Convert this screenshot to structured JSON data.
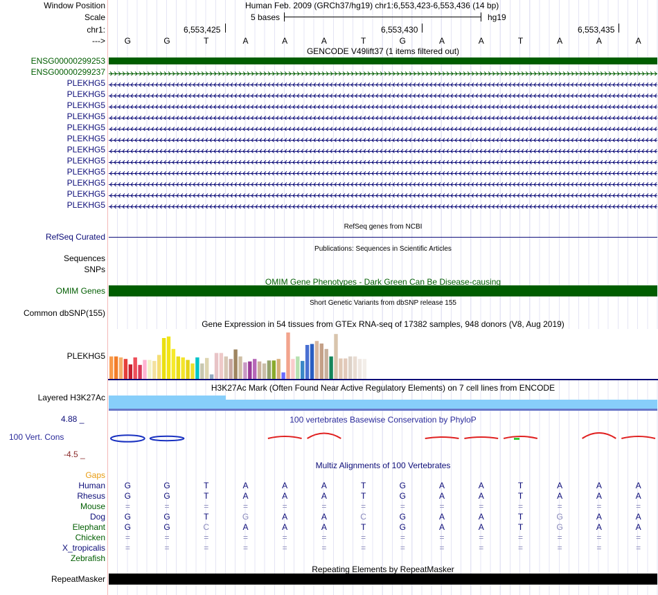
{
  "header": {
    "window_position_label": "Window Position",
    "window_position_value": "Human Feb. 2009 (GRCh37/hg19)   chr1:6,553,423-6,553,436 (14 bp)",
    "scale_label": "Scale",
    "scale_value": "5 bases",
    "scale_assembly": "hg19",
    "chrom_label": "chr1:",
    "strand_label": "--->",
    "positions": [
      "6,553,425",
      "6,553,430",
      "6,553,435"
    ],
    "bases": [
      "G",
      "G",
      "T",
      "A",
      "A",
      "A",
      "T",
      "G",
      "A",
      "A",
      "T",
      "A",
      "A",
      "A"
    ]
  },
  "gencode": {
    "title": "GENCODE V49lift37 (1 items filtered out)",
    "items": [
      {
        "label": "ENSG00000299253",
        "style": "solid"
      },
      {
        "label": "ENSG00000299237",
        "style": "forward"
      },
      {
        "label": "PLEKHG5",
        "style": "reverse"
      },
      {
        "label": "PLEKHG5",
        "style": "reverse"
      },
      {
        "label": "PLEKHG5",
        "style": "reverse"
      },
      {
        "label": "PLEKHG5",
        "style": "reverse"
      },
      {
        "label": "PLEKHG5",
        "style": "reverse"
      },
      {
        "label": "PLEKHG5",
        "style": "reverse"
      },
      {
        "label": "PLEKHG5",
        "style": "reverse"
      },
      {
        "label": "PLEKHG5",
        "style": "reverse"
      },
      {
        "label": "PLEKHG5",
        "style": "reverse"
      },
      {
        "label": "PLEKHG5",
        "style": "reverse"
      },
      {
        "label": "PLEKHG5",
        "style": "reverse"
      },
      {
        "label": "PLEKHG5",
        "style": "reverse"
      }
    ]
  },
  "refseq": {
    "title": "RefSeq genes from NCBI",
    "label": "RefSeq Curated"
  },
  "publications": {
    "title": "Publications: Sequences in Scientific Articles",
    "label": "Sequences"
  },
  "snps": {
    "label": "SNPs"
  },
  "omim": {
    "title": "OMIM Gene Phenotypes - Dark Green Can Be Disease-causing",
    "label": "OMIM Genes"
  },
  "dbsnp": {
    "title": "Short Genetic Variants from dbSNP release 155",
    "label": "Common dbSNP(155)"
  },
  "gtex": {
    "title": "Gene Expression in 54 tissues from GTEx RNA-seq of 17382 samples, 948 donors (V8, Aug 2019)",
    "label": "PLEKHG5",
    "values": [
      0.45,
      0.45,
      0.43,
      0.4,
      0.29,
      0.43,
      0.28,
      0.38,
      0.38,
      0.36,
      0.48,
      0.82,
      0.85,
      0.6,
      0.45,
      0.43,
      0.38,
      0.31,
      0.43,
      0.31,
      0.42,
      0.09,
      0.52,
      0.52,
      0.45,
      0.4,
      0.59,
      0.45,
      0.33,
      0.35,
      0.4,
      0.35,
      0.31,
      0.37,
      0.37,
      0.4,
      0.13,
      0.93,
      0.4,
      0.45,
      0.36,
      0.68,
      0.7,
      0.76,
      0.71,
      0.6,
      0.45,
      0.9,
      0.41,
      0.41,
      0.45,
      0.45,
      0.4,
      0.4
    ],
    "colors": [
      "#f99b4a",
      "#f27d28",
      "#f5b06b",
      "#e53f3a",
      "#c7202f",
      "#ee4f5a",
      "#d83b59",
      "#ffb3d1",
      "#f2f2c9",
      "#f3e19e",
      "#f5de73",
      "#eadf10",
      "#f2e416",
      "#f6ea2b",
      "#e9dd16",
      "#f4e42a",
      "#e5d317",
      "#eedf2d",
      "#00c4c9",
      "#c7c7b0",
      "#ddd5b0",
      "#95a9c0",
      "#e8c3c6",
      "#eec9c8",
      "#d7c7b5",
      "#c8a8a1",
      "#9e8560",
      "#cfbfa5",
      "#c898c4",
      "#9a3c99",
      "#b667b8",
      "#ccb29d",
      "#c9bda8",
      "#94a36e",
      "#8aaa2d",
      "#d7b07a",
      "#6b6bff",
      "#f2a48d",
      "#f9cccc",
      "#b6e1b0",
      "#3a87c7",
      "#4a70d2",
      "#2a5ec2",
      "#d8b79f",
      "#c4a087",
      "#c8b09c",
      "#14855a",
      "#d9c5ad",
      "#e0c8b5",
      "#e2c9ba",
      "#ddd2c8",
      "#e9dcd2",
      "#efe8e2",
      "#f3eee9"
    ]
  },
  "h3k27": {
    "title": "H3K27Ac Mark (Often Found Near Active Regulatory Elements) on 7 cell lines from ENCODE",
    "label": "Layered H3K27Ac"
  },
  "phylop": {
    "title": "100 vertebrates Basewise Conservation by PhyloP",
    "label": "100 Vert. Cons",
    "max": "4.88 _",
    "min": "-4.5 _",
    "scores": [
      -1.2,
      -0.8,
      0,
      0,
      0.6,
      1.5,
      0,
      0,
      0.4,
      0.4,
      0.6,
      0,
      1.6,
      0.6
    ]
  },
  "multiz": {
    "title": "Multiz Alignments of 100 Vertebrates",
    "gaps_label": "Gaps",
    "species": [
      {
        "name": "Human",
        "color": "#0c0c78",
        "bases": [
          "G",
          "G",
          "T",
          "A",
          "A",
          "A",
          "T",
          "G",
          "A",
          "A",
          "T",
          "A",
          "A",
          "A"
        ]
      },
      {
        "name": "Rhesus",
        "color": "#0c0c78",
        "bases": [
          "G",
          "G",
          "T",
          "A",
          "A",
          "A",
          "T",
          "G",
          "A",
          "A",
          "T",
          "A",
          "A",
          "A"
        ]
      },
      {
        "name": "Mouse",
        "color": "#005d00",
        "bases": [
          "=",
          "=",
          "=",
          "=",
          "=",
          "=",
          "=",
          "=",
          "=",
          "=",
          "=",
          "=",
          "=",
          "="
        ]
      },
      {
        "name": "Dog",
        "color": "#0c0c78",
        "bases": [
          "G",
          "G",
          "T",
          "G",
          "A",
          "A",
          "C",
          "G",
          "A",
          "A",
          "T",
          "G",
          "A",
          "A"
        ]
      },
      {
        "name": "Elephant",
        "color": "#005d00",
        "bases": [
          "G",
          "G",
          "C",
          "A",
          "A",
          "A",
          "T",
          "G",
          "A",
          "A",
          "T",
          "G",
          "A",
          "A"
        ]
      },
      {
        "name": "Chicken",
        "color": "#005d00",
        "bases": [
          "=",
          "=",
          "=",
          "=",
          "=",
          "=",
          "=",
          "=",
          "=",
          "=",
          "=",
          "=",
          "=",
          "="
        ]
      },
      {
        "name": "X_tropicalis",
        "color": "#0c0c78",
        "bases": [
          "=",
          "=",
          "=",
          "=",
          "=",
          "=",
          "=",
          "=",
          "=",
          "=",
          "=",
          "=",
          "=",
          "="
        ]
      },
      {
        "name": "Zebrafish",
        "color": "#005d00",
        "bases": [
          "",
          "",
          "",
          "",
          "",
          "",
          "",
          "",
          "",
          "",
          "",
          "",
          "",
          ""
        ]
      }
    ]
  },
  "repeatmasker": {
    "title": "Repeating Elements by RepeatMasker",
    "label": "RepeatMasker"
  },
  "colors": {
    "gene": "#0c0c78",
    "green": "#005d00",
    "omim": "#005d00",
    "h3k27": "#87cefa",
    "gaps": "#e89b10",
    "phylop_pos": "#e02020",
    "phylop_neg": "#1830c0"
  }
}
